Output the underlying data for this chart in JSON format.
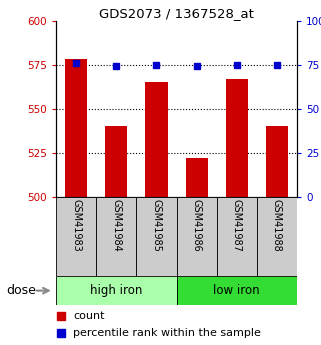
{
  "title": "GDS2073 / 1367528_at",
  "samples": [
    "GSM41983",
    "GSM41984",
    "GSM41985",
    "GSM41986",
    "GSM41987",
    "GSM41988"
  ],
  "bar_values": [
    578,
    540,
    565,
    522,
    567,
    540
  ],
  "bar_base": 500,
  "bar_color": "#cc0000",
  "dot_values": [
    576,
    574,
    575,
    574,
    575,
    575
  ],
  "dot_color": "#0000cc",
  "ylim_left": [
    500,
    600
  ],
  "yticks_left": [
    500,
    525,
    550,
    575,
    600
  ],
  "ylim_right": [
    0,
    100
  ],
  "yticks_right": [
    0,
    25,
    50,
    75,
    100
  ],
  "ytick_right_labels": [
    "0",
    "25",
    "50",
    "75",
    "100%"
  ],
  "hlines": [
    525,
    550,
    575
  ],
  "groups": [
    {
      "label": "high iron",
      "indices": [
        0,
        1,
        2
      ],
      "bg_color": "#aaffaa"
    },
    {
      "label": "low iron",
      "indices": [
        3,
        4,
        5
      ],
      "bg_color": "#33dd33"
    }
  ],
  "dose_label": "dose",
  "legend_count_label": "count",
  "legend_pct_label": "percentile rank within the sample",
  "left_tick_color": "#cc0000",
  "right_tick_color": "#0000cc",
  "bar_width": 0.55,
  "sample_box_bg": "#cccccc",
  "fig_bg": "#ffffff"
}
